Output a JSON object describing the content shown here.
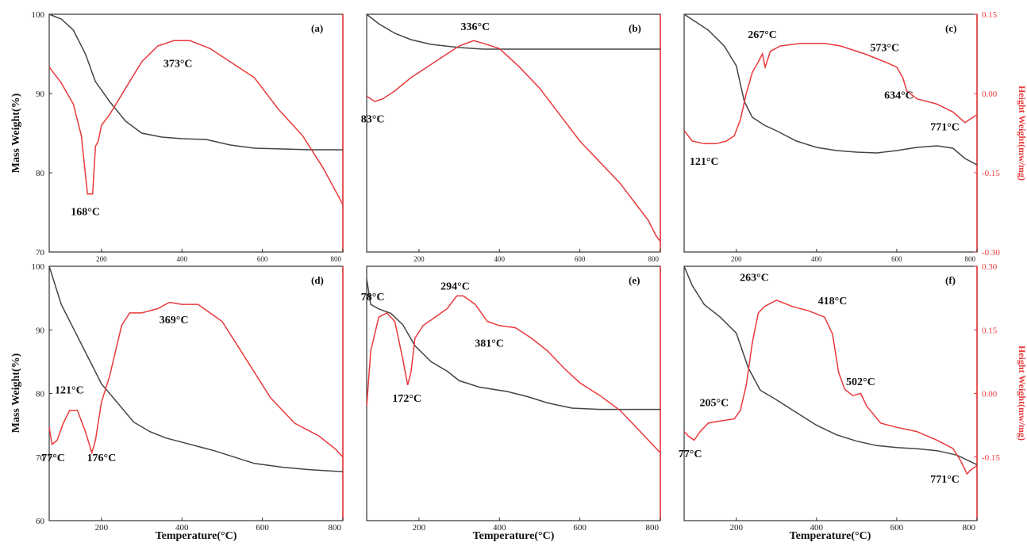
{
  "chart_data": {
    "type": "line",
    "x_axis_label": "Temperature(°C)",
    "left_axis_label": "Mass Weight(%)",
    "right_axis_label": "Height Weight(mw/mg)",
    "series_colors": {
      "mass": "#444444",
      "heat": "#e8393a"
    },
    "rows": [
      {
        "left_ylim": [
          70,
          100
        ],
        "left_ticks": [
          70,
          80,
          90,
          100
        ],
        "right_ylim": [
          -0.3,
          0.15
        ],
        "right_ticks": [
          "-0.30",
          "-0.15",
          "0.00",
          "0.15"
        ]
      },
      {
        "left_ylim": [
          60,
          100
        ],
        "left_ticks": [
          60,
          70,
          80,
          90,
          100
        ],
        "right_ylim": [
          -0.3,
          0.3
        ],
        "right_ticks": [
          "-0.15",
          "0.00",
          "0.15",
          "0.30"
        ]
      }
    ],
    "x_ticks_row1": [
      "200",
      "400",
      "600",
      "800"
    ],
    "x_ticks_row2": [
      "200",
      "400",
      "600",
      "800"
    ],
    "panels": [
      {
        "letter": "(a)",
        "xlim": [
          70,
          800
        ],
        "row": 0,
        "mass": [
          [
            70,
            100
          ],
          [
            100,
            99.4
          ],
          [
            130,
            98
          ],
          [
            160,
            95
          ],
          [
            185,
            91.5
          ],
          [
            220,
            89
          ],
          [
            260,
            86.5
          ],
          [
            300,
            85
          ],
          [
            350,
            84.5
          ],
          [
            400,
            84.3
          ],
          [
            460,
            84.2
          ],
          [
            520,
            83.5
          ],
          [
            580,
            83.1
          ],
          [
            650,
            83
          ],
          [
            720,
            82.9
          ],
          [
            800,
            82.9
          ]
        ],
        "heat": [
          [
            70,
            0.05
          ],
          [
            100,
            0.02
          ],
          [
            130,
            -0.02
          ],
          [
            150,
            -0.08
          ],
          [
            165,
            -0.19
          ],
          [
            178,
            -0.19
          ],
          [
            185,
            -0.1
          ],
          [
            192,
            -0.09
          ],
          [
            200,
            -0.06
          ],
          [
            220,
            -0.04
          ],
          [
            260,
            0.01
          ],
          [
            300,
            0.06
          ],
          [
            340,
            0.09
          ],
          [
            380,
            0.1
          ],
          [
            420,
            0.1
          ],
          [
            470,
            0.085
          ],
          [
            520,
            0.06
          ],
          [
            580,
            0.03
          ],
          [
            640,
            -0.03
          ],
          [
            700,
            -0.08
          ],
          [
            750,
            -0.14
          ],
          [
            800,
            -0.21
          ]
        ],
        "annotations": [
          {
            "text": "168°C",
            "x": 160,
            "y": -0.23
          },
          {
            "text": "373°C",
            "x": 390,
            "y": 0.05
          }
        ]
      },
      {
        "letter": "(b)",
        "xlim": [
          70,
          800
        ],
        "row": 0,
        "mass": [
          [
            70,
            100
          ],
          [
            100,
            98.8
          ],
          [
            140,
            97.6
          ],
          [
            180,
            96.8
          ],
          [
            230,
            96.2
          ],
          [
            300,
            95.8
          ],
          [
            360,
            95.6
          ],
          [
            450,
            95.6
          ],
          [
            600,
            95.6
          ],
          [
            800,
            95.6
          ]
        ],
        "heat": [
          [
            70,
            -0.005
          ],
          [
            90,
            -0.015
          ],
          [
            110,
            -0.01
          ],
          [
            140,
            0.005
          ],
          [
            180,
            0.03
          ],
          [
            220,
            0.05
          ],
          [
            260,
            0.07
          ],
          [
            300,
            0.09
          ],
          [
            336,
            0.1
          ],
          [
            360,
            0.095
          ],
          [
            400,
            0.085
          ],
          [
            450,
            0.05
          ],
          [
            500,
            0.01
          ],
          [
            550,
            -0.04
          ],
          [
            600,
            -0.09
          ],
          [
            650,
            -0.13
          ],
          [
            700,
            -0.17
          ],
          [
            740,
            -0.21
          ],
          [
            770,
            -0.24
          ],
          [
            790,
            -0.27
          ],
          [
            800,
            -0.28
          ]
        ],
        "annotations": [
          {
            "text": "83°C",
            "x": 85,
            "y": -0.055
          },
          {
            "text": "336°C",
            "x": 340,
            "y": 0.12
          }
        ]
      },
      {
        "letter": "(c)",
        "xlim": [
          70,
          800
        ],
        "row": 0,
        "mass": [
          [
            70,
            100
          ],
          [
            100,
            99
          ],
          [
            130,
            98
          ],
          [
            170,
            96
          ],
          [
            200,
            93.5
          ],
          [
            220,
            89
          ],
          [
            240,
            87
          ],
          [
            270,
            86
          ],
          [
            300,
            85.3
          ],
          [
            350,
            84
          ],
          [
            400,
            83.2
          ],
          [
            450,
            82.8
          ],
          [
            500,
            82.6
          ],
          [
            550,
            82.5
          ],
          [
            600,
            82.8
          ],
          [
            650,
            83.2
          ],
          [
            700,
            83.4
          ],
          [
            740,
            83.1
          ],
          [
            770,
            81.8
          ],
          [
            800,
            81
          ]
        ],
        "heat": [
          [
            70,
            -0.07
          ],
          [
            90,
            -0.09
          ],
          [
            120,
            -0.095
          ],
          [
            150,
            -0.095
          ],
          [
            175,
            -0.09
          ],
          [
            195,
            -0.08
          ],
          [
            210,
            -0.05
          ],
          [
            225,
            0.0
          ],
          [
            240,
            0.04
          ],
          [
            255,
            0.06
          ],
          [
            265,
            0.075
          ],
          [
            272,
            0.05
          ],
          [
            285,
            0.08
          ],
          [
            310,
            0.09
          ],
          [
            360,
            0.095
          ],
          [
            420,
            0.095
          ],
          [
            460,
            0.09
          ],
          [
            520,
            0.075
          ],
          [
            570,
            0.06
          ],
          [
            600,
            0.05
          ],
          [
            615,
            0.03
          ],
          [
            625,
            0.005
          ],
          [
            650,
            -0.01
          ],
          [
            700,
            -0.02
          ],
          [
            740,
            -0.035
          ],
          [
            770,
            -0.055
          ],
          [
            790,
            -0.045
          ],
          [
            800,
            -0.04
          ]
        ],
        "annotations": [
          {
            "text": "121°C",
            "x": 120,
            "y": -0.135
          },
          {
            "text": "267°C",
            "x": 265,
            "y": 0.105
          },
          {
            "text": "573°C",
            "x": 570,
            "y": 0.08
          },
          {
            "text": "634°C",
            "x": 605,
            "y": -0.01
          },
          {
            "text": "771°C",
            "x": 720,
            "y": -0.07
          }
        ]
      },
      {
        "letter": "(d)",
        "xlim": [
          70,
          800
        ],
        "row": 1,
        "mass": [
          [
            70,
            100
          ],
          [
            100,
            94
          ],
          [
            140,
            89
          ],
          [
            180,
            84
          ],
          [
            200,
            81.5
          ],
          [
            240,
            78.5
          ],
          [
            280,
            75.5
          ],
          [
            320,
            74
          ],
          [
            360,
            73
          ],
          [
            420,
            72
          ],
          [
            480,
            71
          ],
          [
            530,
            70
          ],
          [
            580,
            69
          ],
          [
            650,
            68.4
          ],
          [
            720,
            68
          ],
          [
            800,
            67.7
          ]
        ],
        "heat": [
          [
            70,
            -0.08
          ],
          [
            77,
            -0.12
          ],
          [
            90,
            -0.11
          ],
          [
            105,
            -0.07
          ],
          [
            121,
            -0.04
          ],
          [
            140,
            -0.04
          ],
          [
            160,
            -0.09
          ],
          [
            176,
            -0.14
          ],
          [
            185,
            -0.11
          ],
          [
            200,
            -0.02
          ],
          [
            220,
            0.04
          ],
          [
            250,
            0.16
          ],
          [
            270,
            0.19
          ],
          [
            300,
            0.19
          ],
          [
            340,
            0.2
          ],
          [
            369,
            0.215
          ],
          [
            400,
            0.21
          ],
          [
            440,
            0.21
          ],
          [
            500,
            0.17
          ],
          [
            560,
            0.08
          ],
          [
            620,
            -0.01
          ],
          [
            680,
            -0.07
          ],
          [
            740,
            -0.1
          ],
          [
            780,
            -0.13
          ],
          [
            800,
            -0.15
          ]
        ],
        "annotations": [
          {
            "text": "77°C",
            "x": 80,
            "y": -0.16
          },
          {
            "text": "121°C",
            "x": 120,
            "y": 0.0
          },
          {
            "text": "176°C",
            "x": 200,
            "y": -0.16
          },
          {
            "text": "369°C",
            "x": 380,
            "y": 0.165
          }
        ]
      },
      {
        "letter": "(e)",
        "xlim": [
          70,
          800
        ],
        "row": 1,
        "mass": [
          [
            70,
            98
          ],
          [
            80,
            94
          ],
          [
            100,
            93.3
          ],
          [
            130,
            92.6
          ],
          [
            160,
            90.8
          ],
          [
            190,
            87.5
          ],
          [
            230,
            85
          ],
          [
            270,
            83.5
          ],
          [
            300,
            82
          ],
          [
            350,
            81
          ],
          [
            420,
            80.3
          ],
          [
            470,
            79.5
          ],
          [
            520,
            78.5
          ],
          [
            580,
            77.7
          ],
          [
            650,
            77.5
          ],
          [
            800,
            77.5
          ]
        ],
        "heat": [
          [
            70,
            -0.03
          ],
          [
            80,
            0.1
          ],
          [
            100,
            0.18
          ],
          [
            120,
            0.19
          ],
          [
            140,
            0.17
          ],
          [
            160,
            0.08
          ],
          [
            172,
            0.02
          ],
          [
            180,
            0.05
          ],
          [
            190,
            0.13
          ],
          [
            210,
            0.16
          ],
          [
            240,
            0.18
          ],
          [
            270,
            0.2
          ],
          [
            294,
            0.23
          ],
          [
            310,
            0.23
          ],
          [
            340,
            0.21
          ],
          [
            370,
            0.17
          ],
          [
            400,
            0.16
          ],
          [
            440,
            0.155
          ],
          [
            480,
            0.13
          ],
          [
            520,
            0.1
          ],
          [
            560,
            0.06
          ],
          [
            600,
            0.025
          ],
          [
            650,
            -0.005
          ],
          [
            700,
            -0.04
          ],
          [
            750,
            -0.09
          ],
          [
            800,
            -0.14
          ]
        ],
        "annotations": [
          {
            "text": "78°C",
            "x": 85,
            "y": 0.22
          },
          {
            "text": "172°C",
            "x": 170,
            "y": -0.02
          },
          {
            "text": "294°C",
            "x": 290,
            "y": 0.245
          },
          {
            "text": "381°C",
            "x": 375,
            "y": 0.11
          }
        ]
      },
      {
        "letter": "(f)",
        "xlim": [
          70,
          800
        ],
        "row": 1,
        "mass": [
          [
            70,
            100
          ],
          [
            90,
            97
          ],
          [
            120,
            94
          ],
          [
            160,
            92
          ],
          [
            200,
            89.5
          ],
          [
            230,
            84
          ],
          [
            260,
            80.5
          ],
          [
            300,
            79
          ],
          [
            350,
            77
          ],
          [
            400,
            75
          ],
          [
            450,
            73.5
          ],
          [
            500,
            72.5
          ],
          [
            550,
            71.8
          ],
          [
            600,
            71.5
          ],
          [
            650,
            71.3
          ],
          [
            700,
            71
          ],
          [
            750,
            70.3
          ],
          [
            800,
            68.8
          ]
        ],
        "heat": [
          [
            70,
            -0.09
          ],
          [
            80,
            -0.1
          ],
          [
            95,
            -0.11
          ],
          [
            110,
            -0.09
          ],
          [
            130,
            -0.07
          ],
          [
            160,
            -0.065
          ],
          [
            195,
            -0.06
          ],
          [
            210,
            -0.04
          ],
          [
            225,
            0.02
          ],
          [
            240,
            0.12
          ],
          [
            255,
            0.19
          ],
          [
            270,
            0.205
          ],
          [
            300,
            0.22
          ],
          [
            340,
            0.205
          ],
          [
            380,
            0.195
          ],
          [
            420,
            0.18
          ],
          [
            440,
            0.14
          ],
          [
            455,
            0.05
          ],
          [
            470,
            0.01
          ],
          [
            490,
            -0.005
          ],
          [
            510,
            0.0
          ],
          [
            525,
            -0.03
          ],
          [
            560,
            -0.07
          ],
          [
            600,
            -0.08
          ],
          [
            650,
            -0.09
          ],
          [
            700,
            -0.11
          ],
          [
            740,
            -0.13
          ],
          [
            760,
            -0.16
          ],
          [
            775,
            -0.19
          ],
          [
            785,
            -0.18
          ],
          [
            800,
            -0.17
          ]
        ],
        "annotations": [
          {
            "text": "77°C",
            "x": 85,
            "y": -0.15
          },
          {
            "text": "205°C",
            "x": 145,
            "y": -0.03
          },
          {
            "text": "263°C",
            "x": 245,
            "y": 0.265
          },
          {
            "text": "418°C",
            "x": 440,
            "y": 0.21
          },
          {
            "text": "502°C",
            "x": 510,
            "y": 0.02
          },
          {
            "text": "771°C",
            "x": 720,
            "y": -0.21
          }
        ]
      }
    ]
  }
}
